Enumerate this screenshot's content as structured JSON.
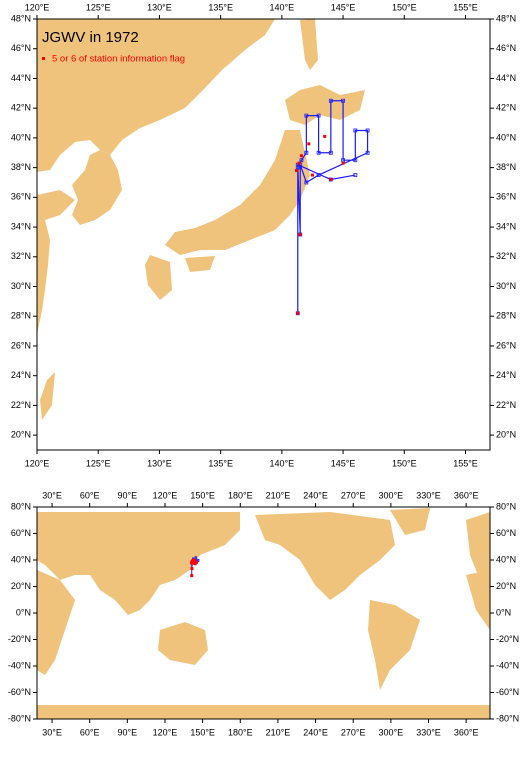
{
  "title": "JGWV in 1972",
  "legend": "5 or 6 of station information flag",
  "maps": [
    {
      "xlim": [
        120,
        157
      ],
      "ylim": [
        19,
        48
      ],
      "xticks": [
        {
          "value": 120,
          "label": "120°E"
        },
        {
          "value": 125,
          "label": "125°E"
        },
        {
          "value": 130,
          "label": "130°E"
        },
        {
          "value": 135,
          "label": "135°E"
        },
        {
          "value": 140,
          "label": "140°E"
        },
        {
          "value": 145,
          "label": "145°E"
        },
        {
          "value": 150,
          "label": "150°E"
        },
        {
          "value": 155,
          "label": "155°E"
        }
      ],
      "yticks": [
        {
          "value": 20,
          "label": "20°N"
        },
        {
          "value": 22,
          "label": "22°N"
        },
        {
          "value": 24,
          "label": "24°N"
        },
        {
          "value": 26,
          "label": "26°N"
        },
        {
          "value": 28,
          "label": "28°N"
        },
        {
          "value": 30,
          "label": "30°N"
        },
        {
          "value": 32,
          "label": "32°N"
        },
        {
          "value": 34,
          "label": "34°N"
        },
        {
          "value": 36,
          "label": "36°N"
        },
        {
          "value": 38,
          "label": "38°N"
        },
        {
          "value": 40,
          "label": "40°N"
        },
        {
          "value": 42,
          "label": "42°N"
        },
        {
          "value": 44,
          "label": "44°N"
        },
        {
          "value": 46,
          "label": "46°N"
        },
        {
          "value": 48,
          "label": "48°N"
        }
      ]
    },
    {
      "xlim": [
        18,
        379
      ],
      "ylim": [
        -80,
        80
      ],
      "xticks": [
        {
          "value": 30,
          "label": "30°E"
        },
        {
          "value": 60,
          "label": "60°E"
        },
        {
          "value": 90,
          "label": "90°E"
        },
        {
          "value": 120,
          "label": "120°E"
        },
        {
          "value": 150,
          "label": "150°E"
        },
        {
          "value": 180,
          "label": "180°E"
        },
        {
          "value": 210,
          "label": "210°E"
        },
        {
          "value": 240,
          "label": "240°E"
        },
        {
          "value": 270,
          "label": "270°E"
        },
        {
          "value": 300,
          "label": "300°E"
        },
        {
          "value": 330,
          "label": "330°E"
        },
        {
          "value": 360,
          "label": "360°E"
        }
      ],
      "yticks": [
        {
          "value": -80,
          "label": "-80°N"
        },
        {
          "value": -60,
          "label": "-60°N"
        },
        {
          "value": -40,
          "label": "-40°N"
        },
        {
          "value": -20,
          "label": "-20°N"
        },
        {
          "value": 0,
          "label": "0°N"
        },
        {
          "value": 20,
          "label": "20°N"
        },
        {
          "value": 40,
          "label": "40°N"
        },
        {
          "value": 60,
          "label": "60°N"
        },
        {
          "value": 80,
          "label": "80°N"
        }
      ]
    }
  ],
  "track": {
    "color": "#1a1aff",
    "lon": [
      141.3,
      141.3,
      141.6,
      142,
      142,
      143,
      143,
      144,
      144,
      145,
      145,
      146,
      146,
      147,
      147,
      143,
      142,
      141.5,
      141.5,
      141.3,
      144,
      146
    ],
    "lat": [
      28.2,
      38.0,
      38.5,
      39,
      41.5,
      41.5,
      39,
      39,
      42.5,
      42.5,
      38.5,
      38.5,
      40.5,
      40.5,
      39,
      37.5,
      37.0,
      38.2,
      33.5,
      38.2,
      37.2,
      37.5
    ]
  },
  "flags": {
    "color": "#ff0000",
    "lon": [
      141.3,
      141.5,
      141.2,
      141.4,
      141.6,
      142.2,
      143.5,
      145,
      144,
      142.5
    ],
    "lat": [
      28.2,
      33.5,
      37.8,
      38.3,
      38.8,
      39.6,
      40.1,
      38.3,
      37.2,
      37.5
    ]
  }
}
